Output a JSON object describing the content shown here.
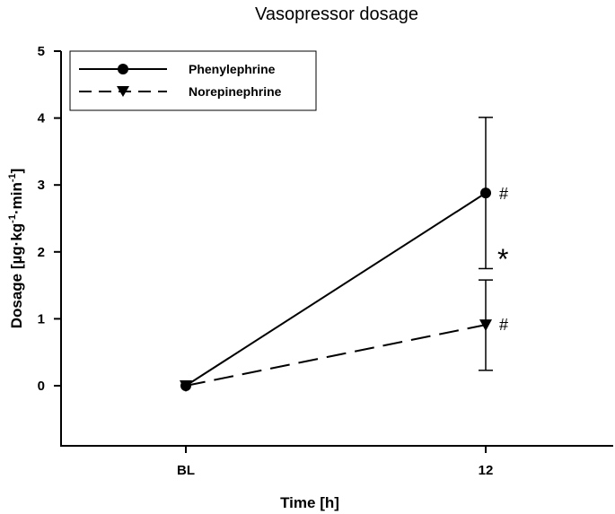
{
  "chart_data": {
    "type": "line",
    "title": "Vasopressor dosage",
    "xlabel": "Time [h]",
    "ylabel": "Dosage [µg·kg·min]",
    "ylabel_parts": {
      "main": "Dosage [µg·kg",
      "sup1": "-1",
      "mid": "·min",
      "sup2": "-1",
      "end": "]"
    },
    "categories": [
      "BL",
      "12"
    ],
    "ylim": [
      0,
      5
    ],
    "yticks": [
      "0",
      "1",
      "2",
      "3",
      "4",
      "5"
    ],
    "grid": false,
    "legend_position": "top-left",
    "series": [
      {
        "name": "Phenylephrine",
        "values": [
          0,
          2.88
        ],
        "error_upper": [
          null,
          4.01
        ],
        "error_lower": [
          null,
          1.75
        ],
        "line_style": "solid",
        "marker": "circle",
        "color": "#000000"
      },
      {
        "name": "Norepinephrine",
        "values": [
          0,
          0.91
        ],
        "error_upper": [
          null,
          1.58
        ],
        "error_lower": [
          null,
          0.23
        ],
        "line_style": "dashed",
        "marker": "triangle-down",
        "color": "#000000"
      }
    ],
    "annotations": [
      "#",
      "#",
      "*"
    ]
  }
}
